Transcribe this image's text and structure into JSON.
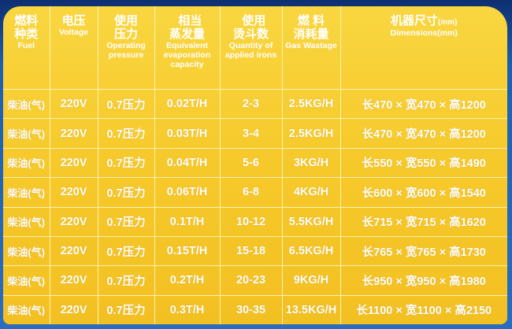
{
  "headers": [
    {
      "zh": "燃料种类",
      "en": "Fuel"
    },
    {
      "zh": "电压",
      "en": "Voltage"
    },
    {
      "zh": "使用压力",
      "en": "Operating pressure"
    },
    {
      "zh": "相当蒸发量",
      "en": "Equivalent evaporation capacity"
    },
    {
      "zh": "使用烫斗数",
      "en": "Quantity of applied irons"
    },
    {
      "zh": "燃 料 消耗量",
      "en": "Gas Wastage"
    },
    {
      "zh": "机器尺寸",
      "zh_unit": "(mm)",
      "en": "Dimensions(mm)"
    }
  ],
  "rows": [
    [
      "柴油(气)",
      "220V",
      "0.7压力",
      "0.02T/H",
      "2-3",
      "2.5KG/H",
      "长470 × 宽470 × 高1200"
    ],
    [
      "柴油(气)",
      "220V",
      "0.7压力",
      "0.03T/H",
      "3-4",
      "2.5KG/H",
      "长470 × 宽470 × 高1200"
    ],
    [
      "柴油(气)",
      "220V",
      "0.7压力",
      "0.04T/H",
      "5-6",
      "3KG/H",
      "长550 × 宽550 × 高1490"
    ],
    [
      "柴油(气)",
      "220V",
      "0.7压力",
      "0.06T/H",
      "6-8",
      "4KG/H",
      "长600 × 宽600 × 高1540"
    ],
    [
      "柴油(气)",
      "220V",
      "0.7压力",
      "0.1T/H",
      "10-12",
      "5.5KG/H",
      "长715 × 宽715 × 高1620"
    ],
    [
      "柴油(气)",
      "220V",
      "0.7压力",
      "0.15T/H",
      "15-18",
      "6.5KG/H",
      "长765 × 宽765 × 高1730"
    ],
    [
      "柴油(气)",
      "220V",
      "0.7压力",
      "0.2T/H",
      "20-23",
      "9KG/H",
      "长950 × 宽950 × 高1980"
    ],
    [
      "柴油(气)",
      "220V",
      "0.7压力",
      "0.3T/H",
      "30-35",
      "13.5KG/H",
      "长1100 × 宽1100 × 高2150"
    ]
  ],
  "colors": {
    "panel": "#f6c92a",
    "background": "#1f5fb0",
    "text": "#ffffff"
  }
}
